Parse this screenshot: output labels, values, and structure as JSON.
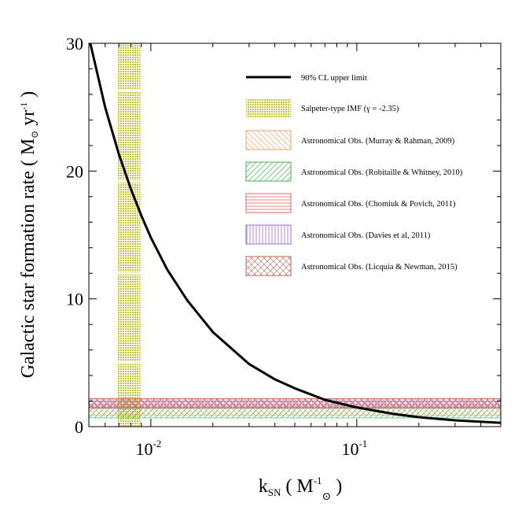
{
  "chart_data": {
    "type": "line",
    "xscale": "log",
    "xlim": [
      0.005,
      0.5
    ],
    "ylim": [
      0,
      30
    ],
    "x_ticks": [
      {
        "value": 0.01,
        "mantissa": "10",
        "exp": "-2"
      },
      {
        "value": 0.1,
        "mantissa": "10",
        "exp": "-1"
      }
    ],
    "y_ticks": [
      {
        "value": 0,
        "label": "0"
      },
      {
        "value": 10,
        "label": "10"
      },
      {
        "value": 20,
        "label": "20"
      },
      {
        "value": 30,
        "label": "30"
      }
    ],
    "xlabel": {
      "main": "k",
      "sub": "SN",
      "open": " ( M",
      "sup": "-1",
      "close": " )"
    },
    "ylabel": {
      "main": "Galactic star formation rate ( M",
      "units": " yr",
      "sup": "-1",
      "close": " )"
    },
    "curve": {
      "name": "90% CL upper limit",
      "color": "#000000",
      "x": [
        0.005,
        0.006,
        0.007,
        0.008,
        0.009,
        0.01,
        0.012,
        0.015,
        0.02,
        0.03,
        0.04,
        0.05,
        0.07,
        0.1,
        0.15,
        0.2,
        0.3,
        0.5
      ],
      "y": [
        30.5,
        25.0,
        21.3,
        18.6,
        16.5,
        14.8,
        12.3,
        9.9,
        7.4,
        4.9,
        3.7,
        3.0,
        2.1,
        1.5,
        1.0,
        0.74,
        0.49,
        0.3
      ]
    },
    "bands": [
      {
        "name": "Salpeter-type IMF (γ = -2.35)",
        "orientation": "vertical",
        "range": [
          0.0069,
          0.0089
        ],
        "pattern": "dots",
        "color": "#c8c832",
        "gaps": [
          5.0,
          12.0,
          19.2,
          26.3
        ]
      },
      {
        "name": "Astronomical Obs. (Murray & Rahman, 2009)",
        "orientation": "horizontal",
        "range": [
          0.9,
          2.2
        ],
        "pattern": "diag-back",
        "color": "#f4a261"
      },
      {
        "name": "Astronomical Obs. (Robitaille & Whitney, 2010)",
        "orientation": "horizontal",
        "range": [
          0.68,
          1.45
        ],
        "pattern": "diag-fwd",
        "color": "#3cb44b"
      },
      {
        "name": "Astronomical Obs. (Chomiuk & Povich, 2011)",
        "orientation": "horizontal",
        "range": [
          1.6,
          2.2
        ],
        "pattern": "horiz",
        "color": "#e06666"
      },
      {
        "name": "Astronomical Obs. (Davies et al, 2011)",
        "orientation": "horizontal",
        "range": [
          1.5,
          2.0
        ],
        "pattern": "vert",
        "color": "#a06cd5"
      },
      {
        "name": "Astronomical Obs. (Licquia & Newman, 2015)",
        "orientation": "horizontal",
        "range": [
          1.44,
          2.16
        ],
        "pattern": "cross",
        "color": "#c0605a"
      }
    ],
    "legend": {
      "position": "upper-right",
      "label_ids": [
        "curve",
        "band-0",
        "band-1",
        "band-2",
        "band-3",
        "band-4",
        "band-5"
      ]
    }
  }
}
